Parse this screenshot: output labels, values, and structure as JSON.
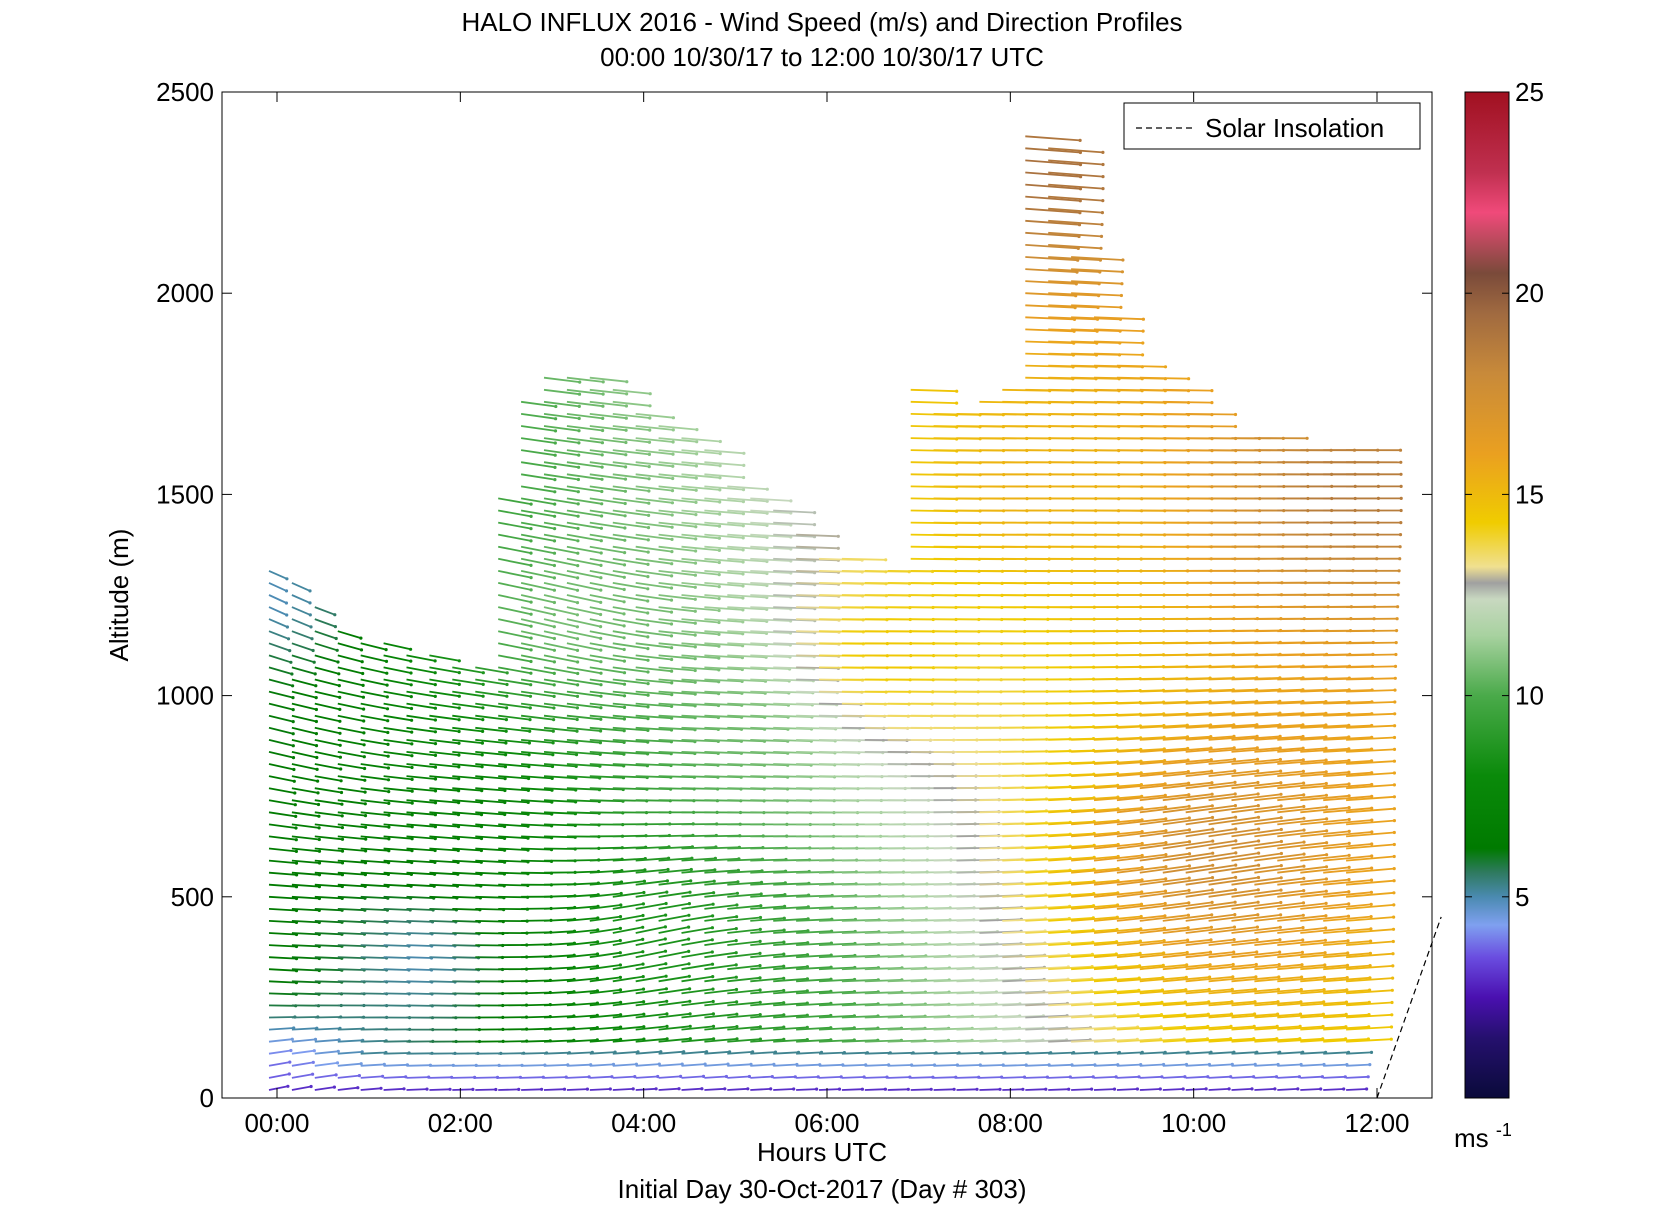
{
  "chart_data": {
    "type": "barb-profile",
    "title": "HALO INFLUX 2016 - Wind Speed (m/s) and Direction Profiles",
    "subtitle": "00:00 10/30/17 to 12:00 10/30/17  UTC",
    "xlabel": "Hours UTC",
    "footer": "Initial Day 30-Oct-2017 (Day # 303)",
    "ylabel": "Altitude (m)",
    "xlim": [
      -0.6,
      12.6
    ],
    "ylim": [
      0,
      2500
    ],
    "x_ticks": [
      0,
      2,
      4,
      6,
      8,
      10,
      12
    ],
    "x_tick_labels": [
      "00:00",
      "02:00",
      "04:00",
      "06:00",
      "08:00",
      "10:00",
      "12:00"
    ],
    "y_ticks": [
      0,
      500,
      1000,
      1500,
      2000,
      2500
    ],
    "y_tick_labels": [
      "0",
      "500",
      "1000",
      "1500",
      "2000",
      "2500"
    ],
    "legend": {
      "label": "Solar Insolation",
      "style": "dashed",
      "placement": "top-right"
    },
    "colorbar": {
      "range": [
        0,
        25
      ],
      "ticks": [
        5,
        10,
        15,
        20,
        25
      ],
      "tick_labels": [
        "5",
        "10",
        "15",
        "20",
        "25"
      ],
      "unit_label": "ms",
      "unit_exponent": "-1",
      "stops": [
        {
          "v": 0,
          "color": "#0a0a3a"
        },
        {
          "v": 1.5,
          "color": "#25106e"
        },
        {
          "v": 2.5,
          "color": "#4a10b0"
        },
        {
          "v": 3.5,
          "color": "#6a4de0"
        },
        {
          "v": 4.3,
          "color": "#7fa0f0"
        },
        {
          "v": 5.0,
          "color": "#4a8ab0"
        },
        {
          "v": 5.6,
          "color": "#2f7a60"
        },
        {
          "v": 6.2,
          "color": "#007a00"
        },
        {
          "v": 8.0,
          "color": "#0a8a0a"
        },
        {
          "v": 10.0,
          "color": "#4aaa4a"
        },
        {
          "v": 11.5,
          "color": "#a8d2a0"
        },
        {
          "v": 12.4,
          "color": "#c8d8c0"
        },
        {
          "v": 12.8,
          "color": "#a0a0a0"
        },
        {
          "v": 13.2,
          "color": "#f0e090"
        },
        {
          "v": 14.3,
          "color": "#f0cc00"
        },
        {
          "v": 16.0,
          "color": "#eaa020"
        },
        {
          "v": 18.0,
          "color": "#c88a3a"
        },
        {
          "v": 19.5,
          "color": "#a06a40"
        },
        {
          "v": 20.5,
          "color": "#7a4a3a"
        },
        {
          "v": 22.0,
          "color": "#f04a7a"
        },
        {
          "v": 23.0,
          "color": "#c03050"
        },
        {
          "v": 25.0,
          "color": "#a01020"
        }
      ]
    },
    "insolation_line": {
      "x": [
        12.0,
        12.7
      ],
      "y": [
        0,
        450
      ]
    },
    "profile_times": [
      0.0,
      0.25,
      0.5,
      0.75,
      1.0,
      1.25,
      1.5,
      1.75,
      2.0,
      2.25,
      2.5,
      2.75,
      3.0,
      3.25,
      3.5,
      3.75,
      4.0,
      4.25,
      4.5,
      4.75,
      5.0,
      5.25,
      5.5,
      5.75,
      6.0,
      6.25,
      6.5,
      6.75,
      7.0,
      7.25,
      7.5,
      7.75,
      8.0,
      8.25,
      8.5,
      8.75,
      9.0,
      9.25,
      9.5,
      9.75,
      10.0,
      10.25,
      10.5,
      10.75,
      11.0,
      11.25,
      11.5,
      11.75
    ],
    "profile_top_altitudes": [
      1320,
      1280,
      1220,
      1180,
      1150,
      1130,
      1110,
      1100,
      1090,
      1080,
      1490,
      1740,
      1800,
      1800,
      1790,
      1760,
      1720,
      1680,
      1650,
      1620,
      1520,
      1500,
      1460,
      1400,
      1360,
      1340,
      1330,
      1320,
      1780,
      1700,
      1720,
      1740,
      1780,
      2400,
      2380,
      2100,
      1960,
      1830,
      1790,
      1780,
      1700,
      1660,
      1650,
      1640,
      1630,
      1620,
      1620,
      1610
    ],
    "speed_field_samples": [
      {
        "time": 0.0,
        "altitude": 50,
        "speed": 3.0,
        "direction_deg": 60
      },
      {
        "time": 0.0,
        "altitude": 300,
        "speed": 6.5,
        "direction_deg": 100
      },
      {
        "time": 0.0,
        "altitude": 900,
        "speed": 6.0,
        "direction_deg": 120
      },
      {
        "time": 0.0,
        "altitude": 1250,
        "speed": 4.5,
        "direction_deg": 140
      },
      {
        "time": 1.5,
        "altitude": 350,
        "speed": 4.5,
        "direction_deg": 95
      },
      {
        "time": 2.0,
        "altitude": 700,
        "speed": 7.0,
        "direction_deg": 100
      },
      {
        "time": 3.0,
        "altitude": 1200,
        "speed": 11.0,
        "direction_deg": 120
      },
      {
        "time": 4.0,
        "altitude": 400,
        "speed": 8.5,
        "direction_deg": 60
      },
      {
        "time": 5.0,
        "altitude": 900,
        "speed": 10.5,
        "direction_deg": 95
      },
      {
        "time": 6.5,
        "altitude": 1100,
        "speed": 15.0,
        "direction_deg": 90
      },
      {
        "time": 8.0,
        "altitude": 1500,
        "speed": 15.5,
        "direction_deg": 90
      },
      {
        "time": 8.0,
        "altitude": 2300,
        "speed": 19.5,
        "direction_deg": 100
      },
      {
        "time": 10.0,
        "altitude": 600,
        "speed": 18.0,
        "direction_deg": 70
      },
      {
        "time": 11.5,
        "altitude": 1500,
        "speed": 19.0,
        "direction_deg": 90
      }
    ]
  }
}
